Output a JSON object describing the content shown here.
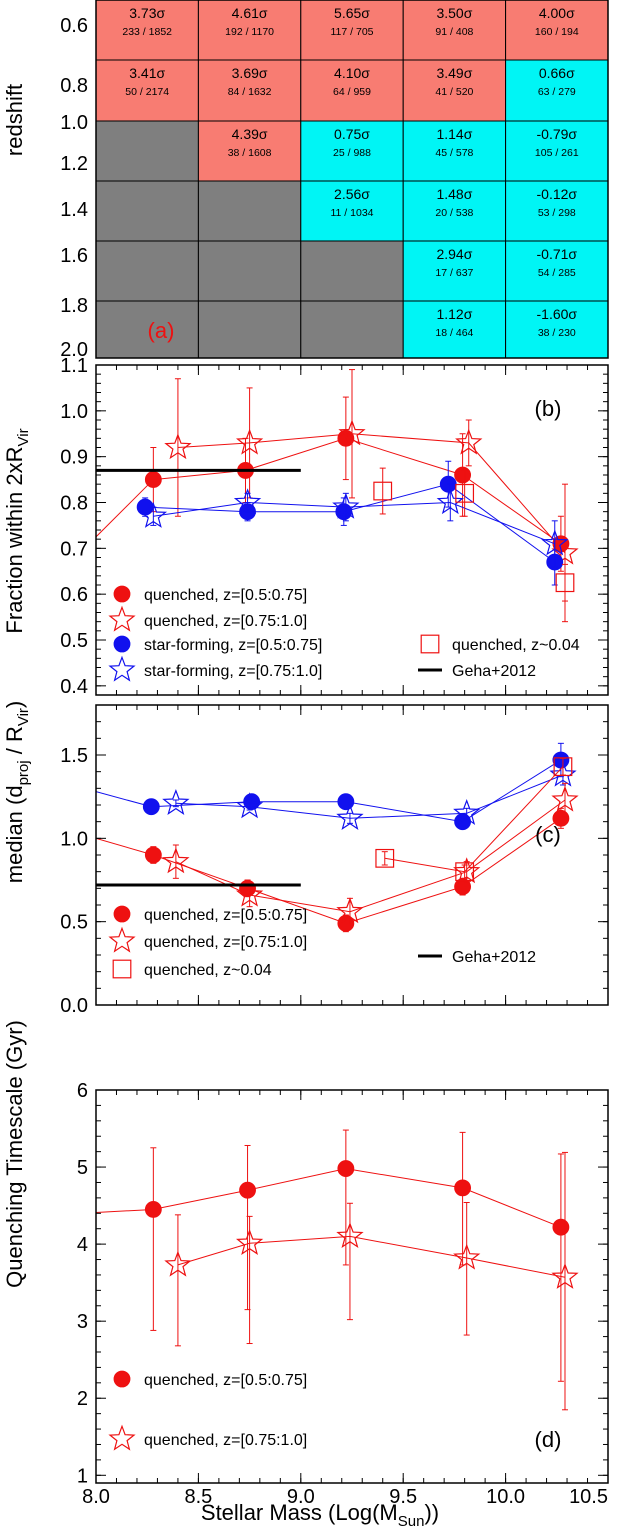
{
  "x_axis": {
    "label_main": "Stellar Mass (Log(M",
    "label_sub": "Sun",
    "label_end": "))",
    "range": [
      8.0,
      10.5
    ],
    "ticks": [
      8.0,
      8.5,
      9.0,
      9.5,
      10.0,
      10.5
    ],
    "tick_labels": [
      "8.0",
      "8.5",
      "9.0",
      "9.5",
      "10.0",
      "10.5"
    ]
  },
  "colors": {
    "red": "#ee1111",
    "blue": "#1111ee",
    "black": "#000000",
    "salmon": "#f87c72",
    "cyan": "#00f5f5",
    "gray": "#7f7f7f"
  },
  "chart_data": [
    {
      "type": "heatmap",
      "panel": "(a)",
      "ylabel": "redshift",
      "y_tick_labels": [
        "0.6",
        "0.8",
        "1.0",
        "1.2",
        "1.4",
        "1.6",
        "1.8",
        "2.0"
      ],
      "columns": 5,
      "rows": [
        [
          {
            "fill": "salmon",
            "sigma": "3.73σ",
            "counts": "233 / 1852"
          },
          {
            "fill": "salmon",
            "sigma": "4.61σ",
            "counts": "192 / 1170"
          },
          {
            "fill": "salmon",
            "sigma": "5.65σ",
            "counts": "117 / 705"
          },
          {
            "fill": "salmon",
            "sigma": "3.50σ",
            "counts": "91 / 408"
          },
          {
            "fill": "salmon",
            "sigma": "4.00σ",
            "counts": "160 / 194"
          }
        ],
        [
          {
            "fill": "salmon",
            "sigma": "3.41σ",
            "counts": "50 / 2174"
          },
          {
            "fill": "salmon",
            "sigma": "3.69σ",
            "counts": "84 / 1632"
          },
          {
            "fill": "salmon",
            "sigma": "4.10σ",
            "counts": "64 / 959"
          },
          {
            "fill": "salmon",
            "sigma": "3.49σ",
            "counts": "41 / 520"
          },
          {
            "fill": "cyan",
            "sigma": "0.66σ",
            "counts": "63 / 279"
          }
        ],
        [
          {
            "fill": "gray",
            "sigma": "",
            "counts": ""
          },
          {
            "fill": "salmon",
            "sigma": "4.39σ",
            "counts": "38 / 1608"
          },
          {
            "fill": "cyan",
            "sigma": "0.75σ",
            "counts": "25 / 988"
          },
          {
            "fill": "cyan",
            "sigma": "1.14σ",
            "counts": "45 / 578"
          },
          {
            "fill": "cyan",
            "sigma": "-0.79σ",
            "counts": "105 / 261"
          }
        ],
        [
          {
            "fill": "gray",
            "sigma": "",
            "counts": ""
          },
          {
            "fill": "gray",
            "sigma": "",
            "counts": ""
          },
          {
            "fill": "cyan",
            "sigma": "2.56σ",
            "counts": "11 / 1034"
          },
          {
            "fill": "cyan",
            "sigma": "1.48σ",
            "counts": "20 / 538"
          },
          {
            "fill": "cyan",
            "sigma": "-0.12σ",
            "counts": "53 / 298"
          }
        ],
        [
          {
            "fill": "gray",
            "sigma": "",
            "counts": ""
          },
          {
            "fill": "gray",
            "sigma": "",
            "counts": ""
          },
          {
            "fill": "gray",
            "sigma": "",
            "counts": ""
          },
          {
            "fill": "cyan",
            "sigma": "2.94σ",
            "counts": "17 / 637"
          },
          {
            "fill": "cyan",
            "sigma": "-0.71σ",
            "counts": "54 / 285"
          }
        ],
        [
          {
            "fill": "gray",
            "sigma": "",
            "counts": ""
          },
          {
            "fill": "gray",
            "sigma": "",
            "counts": ""
          },
          {
            "fill": "gray",
            "sigma": "",
            "counts": ""
          },
          {
            "fill": "cyan",
            "sigma": "1.12σ",
            "counts": "18 / 464"
          },
          {
            "fill": "cyan",
            "sigma": "-1.60σ",
            "counts": "38 / 230"
          }
        ]
      ]
    },
    {
      "type": "scatter",
      "panel": "(b)",
      "ylabel_main": "Fraction within 2xR",
      "ylabel_sub": "Vir",
      "ylim": [
        0.38,
        1.1
      ],
      "yticks": [
        0.4,
        0.5,
        0.6,
        0.7,
        0.8,
        0.9,
        1.0,
        1.1
      ],
      "ytick_labels": [
        "0.4",
        "0.5",
        "0.6",
        "0.7",
        "0.8",
        "0.9",
        "1.0",
        "1.1"
      ],
      "series": [
        {
          "name": "quenched, z=[0.5:0.75]",
          "marker": "circle-filled",
          "color": "red",
          "connected": true,
          "x": [
            8.28,
            8.73,
            9.22,
            9.79,
            10.27
          ],
          "y": [
            0.85,
            0.87,
            0.94,
            0.86,
            0.71
          ],
          "err": [
            0.07,
            0.07,
            0.09,
            0.09,
            0.06
          ],
          "line_extend": {
            "x": [
              8.0,
              8.28
            ],
            "y": [
              0.725,
              0.85
            ]
          }
        },
        {
          "name": "quenched, z=[0.75:1.0]",
          "marker": "star-open",
          "color": "red",
          "connected": true,
          "x": [
            8.4,
            8.75,
            9.25,
            9.82,
            10.29
          ],
          "y": [
            0.92,
            0.93,
            0.95,
            0.93,
            0.69
          ],
          "err": [
            0.15,
            0.12,
            0.14,
            0.05,
            0.15
          ]
        },
        {
          "name": "star-forming, z=[0.5:0.75]",
          "marker": "circle-filled",
          "color": "blue",
          "connected": true,
          "x": [
            8.24,
            8.74,
            9.21,
            9.72,
            10.24
          ],
          "y": [
            0.79,
            0.78,
            0.78,
            0.84,
            0.67
          ],
          "err": [
            0.02,
            0.02,
            0.03,
            0.05,
            0.05
          ]
        },
        {
          "name": "star-forming, z=[0.75:1.0]",
          "marker": "star-open",
          "color": "blue",
          "connected": true,
          "x": [
            8.28,
            8.74,
            9.22,
            9.73,
            10.24
          ],
          "y": [
            0.77,
            0.8,
            0.79,
            0.8,
            0.71
          ],
          "err": [
            0.02,
            0.02,
            0.03,
            0.04,
            0.05
          ]
        },
        {
          "name": "quenched, z~0.04",
          "marker": "square-open",
          "color": "red",
          "connected": false,
          "x": [
            9.4,
            9.8,
            10.29
          ],
          "y": [
            0.825,
            0.82,
            0.625
          ],
          "err": [
            0.05,
            0.05,
            0.04
          ]
        },
        {
          "name": "Geha+2012",
          "marker": "hline",
          "color": "black",
          "x": [
            8.0,
            9.0
          ],
          "y": [
            0.87,
            0.87
          ]
        }
      ],
      "legend_left": [
        "quenched, z=[0.5:0.75]",
        "quenched, z=[0.75:1.0]",
        "star-forming, z=[0.5:0.75]",
        "star-forming, z=[0.75:1.0]"
      ],
      "legend_right": [
        "quenched, z~0.04",
        "Geha+2012"
      ]
    },
    {
      "type": "scatter",
      "panel": "(c)",
      "ylabel_pre": "median (d",
      "ylabel_sub1": "proj",
      "ylabel_mid": " / R",
      "ylabel_sub2": "Vir",
      "ylabel_post": ")",
      "ylim": [
        0.0,
        1.8
      ],
      "yticks": [
        0.0,
        0.5,
        1.0,
        1.5
      ],
      "ytick_labels": [
        "0.0",
        "0.5",
        "1.0",
        "1.5"
      ],
      "series": [
        {
          "name": "star-forming, z=[0.5:0.75]",
          "marker": "circle-filled",
          "color": "blue",
          "connected": true,
          "x": [
            8.27,
            8.76,
            9.22,
            9.79,
            10.27
          ],
          "y": [
            1.19,
            1.22,
            1.22,
            1.1,
            1.47
          ],
          "err": [
            0.02,
            0.02,
            0.03,
            0.04,
            0.1
          ],
          "line_extend": {
            "x": [
              8.0,
              8.27
            ],
            "y": [
              1.28,
              1.19
            ]
          }
        },
        {
          "name": "star-forming, z=[0.75:1.0]",
          "marker": "star-open",
          "color": "blue",
          "connected": true,
          "x": [
            8.39,
            8.75,
            9.24,
            9.81,
            10.28
          ],
          "y": [
            1.21,
            1.19,
            1.12,
            1.15,
            1.38
          ],
          "err": [
            0.02,
            0.02,
            0.03,
            0.03,
            0.06
          ]
        },
        {
          "name": "quenched, z=[0.5:0.75]",
          "marker": "circle-filled",
          "color": "red",
          "connected": true,
          "x": [
            8.28,
            8.74,
            9.22,
            9.79,
            10.27
          ],
          "y": [
            0.9,
            0.7,
            0.49,
            0.71,
            1.12
          ],
          "err": [
            0.05,
            0.05,
            0.05,
            0.05,
            0.06
          ],
          "line_extend": {
            "x": [
              8.0,
              8.28
            ],
            "y": [
              1.0,
              0.9
            ]
          }
        },
        {
          "name": "quenched, z=[0.75:1.0]",
          "marker": "star-open",
          "color": "red",
          "connected": true,
          "x": [
            8.39,
            8.75,
            9.24,
            9.81,
            10.29
          ],
          "y": [
            0.86,
            0.66,
            0.56,
            0.8,
            1.23
          ],
          "err": [
            0.1,
            0.07,
            0.08,
            0.06,
            0.1
          ]
        },
        {
          "name": "quenched, z~0.04",
          "marker": "square-open",
          "color": "red",
          "connected": true,
          "x": [
            9.41,
            9.8,
            10.28
          ],
          "y": [
            0.88,
            0.8,
            1.43
          ],
          "err": [
            0.04,
            0.04,
            0.05
          ]
        },
        {
          "name": "Geha+2012",
          "marker": "hline",
          "color": "black",
          "x": [
            8.0,
            9.0
          ],
          "y": [
            0.72,
            0.72
          ]
        }
      ],
      "legend_left": [
        "quenched, z=[0.5:0.75]",
        "quenched, z=[0.75:1.0]",
        "quenched, z~0.04"
      ],
      "legend_right": [
        "Geha+2012"
      ]
    },
    {
      "type": "scatter",
      "panel": "(d)",
      "ylabel": "Quenching Timescale (Gyr)",
      "ylim": [
        0.9,
        6.0
      ],
      "yticks": [
        1,
        2,
        3,
        4,
        5,
        6
      ],
      "ytick_labels": [
        "1",
        "2",
        "3",
        "4",
        "5",
        "6"
      ],
      "series": [
        {
          "name": "quenched, z=[0.5:0.75]",
          "marker": "circle-filled",
          "color": "red",
          "connected": true,
          "x": [
            8.28,
            8.74,
            9.22,
            9.79,
            10.27
          ],
          "y": [
            4.45,
            4.7,
            4.98,
            4.73,
            4.22
          ],
          "err": [
            0.8,
            0.58,
            0.5,
            0.72,
            0.95
          ],
          "err_lo": [
            1.57,
            1.55,
            1.25,
            1.0,
            2.0
          ],
          "line_extend": {
            "x": [
              8.0,
              8.28
            ],
            "y": [
              4.41,
              4.45
            ]
          }
        },
        {
          "name": "quenched, z=[0.75:1.0]",
          "marker": "star-open",
          "color": "red",
          "connected": true,
          "x": [
            8.4,
            8.75,
            9.24,
            9.81,
            10.29
          ],
          "y": [
            3.73,
            4.01,
            4.1,
            3.82,
            3.57
          ],
          "err": [
            0.65,
            0.35,
            0.43,
            0.72,
            1.62
          ],
          "err_lo": [
            1.05,
            1.3,
            1.08,
            1.0,
            1.72
          ]
        }
      ],
      "legend_left": [
        "quenched, z=[0.5:0.75]",
        "quenched, z=[0.75:1.0]"
      ],
      "legend_right": []
    }
  ]
}
